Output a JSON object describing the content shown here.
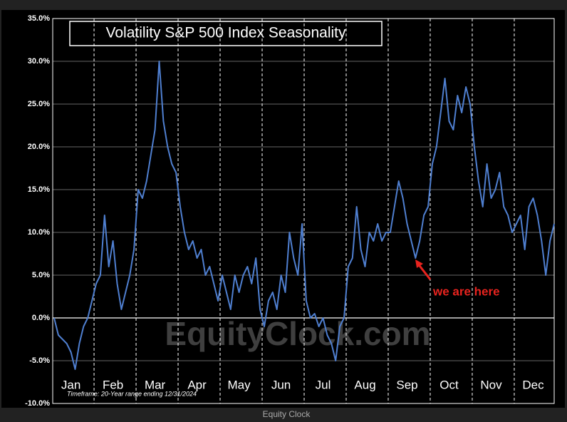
{
  "chart_data": {
    "type": "line",
    "title": "Volatility S&P 500 Index Seasonality",
    "note": "Timeframe: 20-Year range ending 12/31/2024",
    "watermark": "EquityClock.com",
    "source": "Equity Clock",
    "annotation": "we are here",
    "categories": [
      null,
      null,
      null,
      null,
      "Jan",
      null,
      null,
      null,
      null,
      null,
      null,
      null,
      null,
      null,
      "Feb",
      null,
      null,
      null,
      null,
      null,
      null,
      null,
      null,
      null,
      "Mar",
      null,
      null,
      null,
      null,
      null,
      null,
      null,
      null,
      null,
      "Apr",
      null,
      null,
      null,
      null,
      null,
      null,
      null,
      null,
      null,
      "May",
      null,
      null,
      null,
      null,
      null,
      null,
      null,
      null,
      null,
      "Jun",
      null,
      null,
      null,
      null,
      null,
      null,
      null,
      null,
      null,
      "Jul",
      null,
      null,
      null,
      null,
      null,
      null,
      null,
      null,
      null,
      "Aug",
      null,
      null,
      null,
      null,
      null,
      null,
      null,
      null,
      null,
      "Sep",
      null,
      null,
      null,
      null,
      null,
      null,
      null,
      null,
      null,
      "Oct",
      null,
      null,
      null,
      null,
      null,
      null,
      null,
      null,
      null,
      "Nov",
      null,
      null,
      null,
      null,
      null,
      null,
      null,
      null,
      null,
      "Dec",
      null,
      null,
      null,
      null,
      null
    ],
    "series": [
      {
        "name": "Volatility S&P 500 Index",
        "color": "#4f7fd0",
        "values": [
          0,
          -2,
          -2.5,
          -3,
          -4,
          -6,
          -3,
          -1,
          0,
          2,
          4,
          5,
          12,
          6,
          9,
          4,
          1,
          3,
          5,
          8,
          15,
          14,
          16,
          19,
          22,
          30,
          23,
          20,
          18,
          17,
          13,
          10,
          8,
          9,
          7,
          8,
          5,
          6,
          4,
          2,
          5,
          3,
          1,
          5,
          3,
          5,
          6,
          4,
          7,
          1,
          -1,
          2,
          3,
          1,
          5,
          3,
          10,
          7,
          5,
          11,
          2,
          0,
          0.5,
          -1,
          0,
          -2,
          -3,
          -5,
          -1,
          0,
          6,
          7,
          13,
          8,
          6,
          10,
          9,
          11,
          9,
          10,
          10,
          13,
          16,
          14,
          11,
          9,
          7,
          9,
          12,
          13,
          18,
          20,
          24,
          28,
          23,
          22,
          26,
          24,
          27,
          25,
          20,
          16,
          13,
          18,
          14,
          15,
          17,
          13,
          12,
          10,
          11,
          12,
          8,
          13,
          14,
          12,
          9,
          5,
          9,
          11
        ]
      }
    ],
    "ylim": [
      -10,
      35
    ],
    "yticks": [
      {
        "value": -10,
        "label": "-10.0%"
      },
      {
        "value": -5,
        "label": "-5.0%"
      },
      {
        "value": 0,
        "label": "0.0%"
      },
      {
        "value": 5,
        "label": "5.0%"
      },
      {
        "value": 10,
        "label": "10.0%"
      },
      {
        "value": 15,
        "label": "15.0%"
      },
      {
        "value": 20,
        "label": "20.0%"
      },
      {
        "value": 25,
        "label": "25.0%"
      },
      {
        "value": 30,
        "label": "30.0%"
      },
      {
        "value": 35,
        "label": "35.0%"
      }
    ],
    "grid": true
  }
}
